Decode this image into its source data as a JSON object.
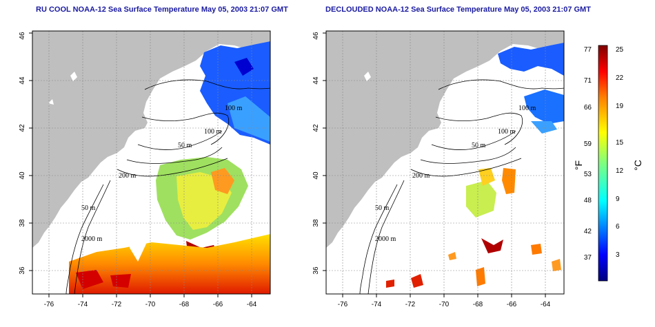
{
  "maps": [
    {
      "id": "left",
      "title": "RU COOL NOAA-12 Sea Surface Temperature May 05, 2003 21:07 GMT",
      "x_ticks": [
        "-76",
        "-74",
        "-72",
        "-70",
        "-68",
        "-66",
        "-64"
      ],
      "y_ticks": [
        "36",
        "38",
        "40",
        "42",
        "44",
        "46"
      ],
      "contour_labels": [
        "100 m",
        "100 m",
        "50 m",
        "200 m",
        "50 m",
        "2000 m"
      ]
    },
    {
      "id": "right",
      "title": "DECLOUDED NOAA-12 Sea Surface Temperature May 05, 2003 21:07 GMT",
      "x_ticks": [
        "-76",
        "-74",
        "-72",
        "-70",
        "-68",
        "-66",
        "-64"
      ],
      "y_ticks": [
        "36",
        "38",
        "40",
        "42",
        "44",
        "46"
      ],
      "contour_labels": [
        "100 m",
        "100 m",
        "50 m",
        "200 m",
        "50 m",
        "2000 m"
      ]
    }
  ],
  "colorbar": {
    "fahrenheit_label": "°F",
    "celsius_label": "°C",
    "fahrenheit_ticks": [
      "77",
      "71",
      "66",
      "59",
      "53",
      "48",
      "42",
      "37"
    ],
    "celsius_ticks": [
      "25",
      "22",
      "19",
      "15",
      "12",
      "9",
      "6",
      "3"
    ],
    "colors": [
      "#00007f",
      "#0000ff",
      "#007fff",
      "#00ffff",
      "#7fff7f",
      "#ffff00",
      "#ff7f00",
      "#ff0000",
      "#7f0000"
    ]
  },
  "colors": {
    "land": "#bfbfbf",
    "title": "#1a1aa0"
  }
}
